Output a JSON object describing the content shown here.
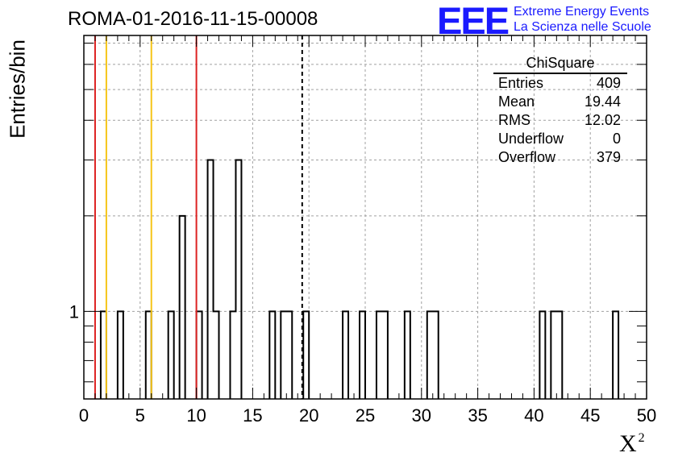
{
  "header": {
    "title": "ROMA-01-2016-11-15-00008"
  },
  "logo": {
    "mark": "EEE",
    "line1": "Extreme Energy Events",
    "line2": "La Scienza nelle Scuole"
  },
  "stats_box": {
    "title": "ChiSquare",
    "rows": [
      {
        "label": "Entries",
        "value": "409"
      },
      {
        "label": "Mean",
        "value": "19.44"
      },
      {
        "label": "RMS",
        "value": "12.02"
      },
      {
        "label": "Underflow",
        "value": "0"
      },
      {
        "label": "Overflow",
        "value": "379"
      }
    ]
  },
  "colors": {
    "red_line": "#dd2222",
    "yellow_line": "#f5c518",
    "histogram": "#000000",
    "grid": "#a0a0a0",
    "logo": "#1a1aff"
  },
  "chart_data": {
    "type": "bar",
    "title": "ROMA-01-2016-11-15-00008",
    "xlabel": "X",
    "xlabel_sup": "2",
    "ylabel": "Entries/bin",
    "xlim": [
      0,
      50
    ],
    "ylim": [
      0.53,
      7.4
    ],
    "yscale": "log",
    "bin_width": 0.5,
    "x_ticks": [
      "0",
      "5",
      "10",
      "15",
      "20",
      "25",
      "30",
      "35",
      "40",
      "45",
      "50"
    ],
    "y_tick_labels": [
      "1"
    ],
    "grid": true,
    "bins": [
      {
        "x": 1.5,
        "count": 1
      },
      {
        "x": 3.0,
        "count": 1
      },
      {
        "x": 5.5,
        "count": 1
      },
      {
        "x": 7.5,
        "count": 1
      },
      {
        "x": 8.5,
        "count": 2
      },
      {
        "x": 10.0,
        "count": 1
      },
      {
        "x": 11.0,
        "count": 3
      },
      {
        "x": 11.5,
        "count": 1
      },
      {
        "x": 13.0,
        "count": 1
      },
      {
        "x": 13.5,
        "count": 3
      },
      {
        "x": 16.5,
        "count": 1
      },
      {
        "x": 17.5,
        "count": 1
      },
      {
        "x": 18.0,
        "count": 1
      },
      {
        "x": 19.5,
        "count": 1
      },
      {
        "x": 23.0,
        "count": 1
      },
      {
        "x": 24.5,
        "count": 1
      },
      {
        "x": 26.0,
        "count": 1
      },
      {
        "x": 26.5,
        "count": 1
      },
      {
        "x": 28.5,
        "count": 1
      },
      {
        "x": 30.5,
        "count": 1
      },
      {
        "x": 31.0,
        "count": 1
      },
      {
        "x": 40.5,
        "count": 1
      },
      {
        "x": 41.5,
        "count": 1
      },
      {
        "x": 42.0,
        "count": 1
      },
      {
        "x": 47.0,
        "count": 1
      }
    ],
    "reference_lines": [
      {
        "x": 1.0,
        "color": "red",
        "style": "solid"
      },
      {
        "x": 2.0,
        "color": "yellow",
        "style": "solid"
      },
      {
        "x": 6.0,
        "color": "yellow",
        "style": "solid"
      },
      {
        "x": 10.0,
        "color": "red",
        "style": "solid"
      },
      {
        "x": 19.4,
        "color": "black",
        "style": "dashed"
      }
    ]
  }
}
